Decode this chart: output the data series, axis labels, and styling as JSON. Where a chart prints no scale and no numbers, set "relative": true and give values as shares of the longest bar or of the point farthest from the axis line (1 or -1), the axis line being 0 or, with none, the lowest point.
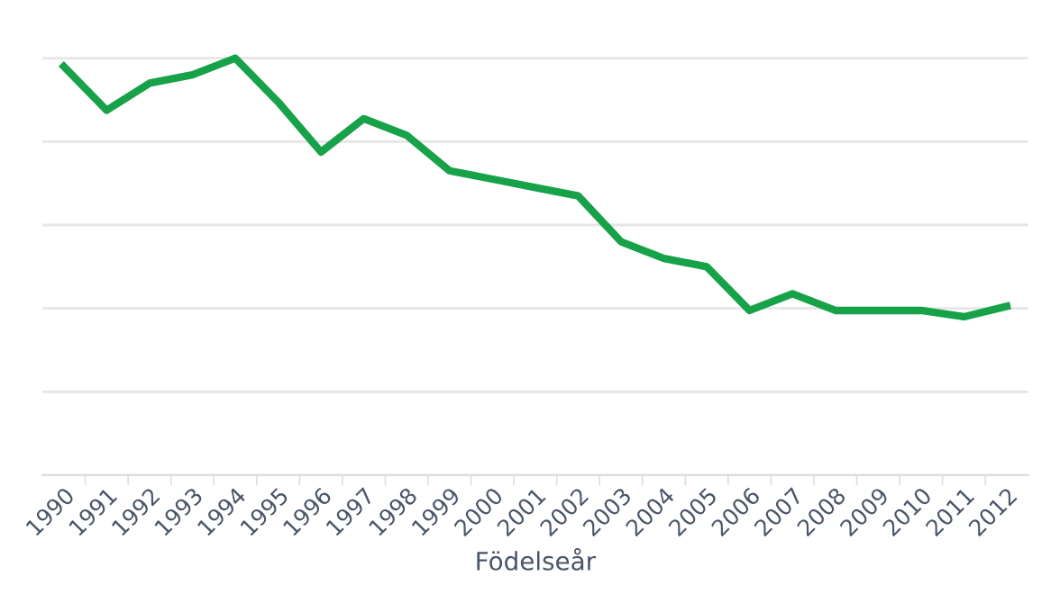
{
  "chart_data": {
    "type": "line",
    "relative": true,
    "xlabel": "Födelseår",
    "categories": [
      "1990",
      "1991",
      "1992",
      "1993",
      "1994",
      "1995",
      "1996",
      "1997",
      "1998",
      "1999",
      "2000",
      "2001",
      "2002",
      "2003",
      "2004",
      "2005",
      "2006",
      "2007",
      "2008",
      "2009",
      "2010",
      "2011",
      "2012"
    ],
    "series": [
      {
        "color": "#17a24a",
        "values": [
          0.98,
          0.875,
          0.94,
          0.96,
          1,
          0.895,
          0.775,
          0.855,
          0.815,
          0.73,
          0.71,
          0.69,
          0.67,
          0.56,
          0.52,
          0.5,
          0.395,
          0.435,
          0.395,
          0.395,
          0.395,
          0.38,
          0.405
        ]
      }
    ],
    "grid": "y",
    "marker": "none",
    "line_style": "solid",
    "legend": false,
    "tick_labels": "x"
  }
}
